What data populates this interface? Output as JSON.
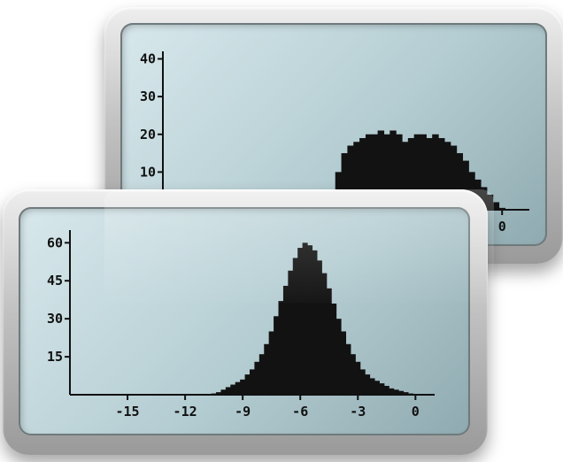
{
  "chart_data": [
    {
      "type": "bar",
      "title": "",
      "xlabel": "",
      "ylabel": "",
      "ylim": [
        0,
        42
      ],
      "xlim": [
        -11.2,
        0.9
      ],
      "y_ticks": [
        "10",
        "20",
        "30",
        "40"
      ],
      "y_tick_values": [
        10,
        20,
        30,
        40
      ],
      "x_ticks": [
        "0"
      ],
      "x_tick_values": [
        0
      ],
      "series": [
        {
          "x": [
            -5.8,
            -5.6,
            -5.4,
            -5.2,
            -5.0,
            -4.8,
            -4.6,
            -4.4,
            -4.2,
            -4.0,
            -3.8,
            -3.6,
            -3.4,
            -3.2,
            -3.0,
            -2.8,
            -2.6,
            -2.4,
            -2.2,
            -2.0,
            -1.8,
            -1.6,
            -1.4,
            -1.2,
            -1.0,
            -0.8,
            -0.6,
            -0.4,
            -0.2,
            0.0
          ],
          "values": [
            1,
            5,
            10,
            15,
            17,
            18,
            19,
            20,
            20,
            21,
            20,
            21,
            20,
            18,
            19,
            20,
            20,
            19,
            20,
            19,
            18,
            17,
            15,
            13,
            10,
            8,
            6,
            4,
            2,
            0.5
          ]
        }
      ]
    },
    {
      "type": "bar",
      "title": "",
      "xlabel": "",
      "ylabel": "",
      "ylim": [
        0,
        65
      ],
      "xlim": [
        -18,
        1
      ],
      "y_ticks": [
        "15",
        "30",
        "45",
        "60"
      ],
      "y_tick_values": [
        15,
        30,
        45,
        60
      ],
      "x_ticks": [
        "-15",
        "-12",
        "-9",
        "-6",
        "-3",
        "0"
      ],
      "x_tick_values": [
        -15,
        -12,
        -9,
        -6,
        -3,
        0
      ],
      "series": [
        {
          "x": [
            -10.5,
            -10.25,
            -10.0,
            -9.75,
            -9.5,
            -9.25,
            -9.0,
            -8.75,
            -8.5,
            -8.25,
            -8.0,
            -7.75,
            -7.5,
            -7.25,
            -7.0,
            -6.75,
            -6.5,
            -6.25,
            -6.0,
            -5.75,
            -5.5,
            -5.25,
            -5.0,
            -4.75,
            -4.5,
            -4.25,
            -4.0,
            -3.75,
            -3.5,
            -3.25,
            -3.0,
            -2.75,
            -2.5,
            -2.25,
            -2.0,
            -1.75,
            -1.5,
            -1.25,
            -1.0,
            -0.75,
            -0.5,
            -0.25,
            0.0
          ],
          "values": [
            0.5,
            1,
            2,
            3,
            4,
            5,
            6,
            8,
            10,
            13,
            16,
            20,
            25,
            31,
            37,
            43,
            49,
            54,
            58,
            60,
            59,
            57,
            53,
            48,
            42,
            36,
            30,
            25,
            20,
            16,
            13,
            10,
            8,
            6.5,
            5.5,
            4.5,
            3.5,
            2.5,
            2,
            1.5,
            1,
            0.5,
            0.2
          ]
        }
      ]
    }
  ]
}
